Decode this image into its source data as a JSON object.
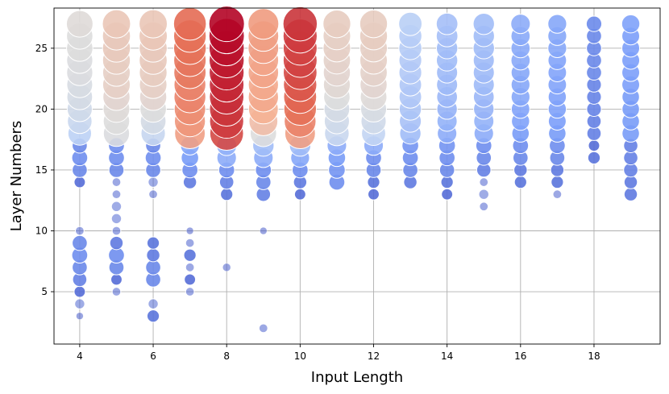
{
  "chart_data": {
    "type": "scatter",
    "title": "",
    "xlabel": "Input Length",
    "ylabel": "Layer Numbers",
    "xlim": [
      3.3,
      19.8
    ],
    "ylim": [
      0.7,
      28.3
    ],
    "xticks": [
      "4",
      "6",
      "8",
      "10",
      "12",
      "14",
      "16",
      "18"
    ],
    "yticks": [
      "5",
      "10",
      "15",
      "20",
      "25"
    ],
    "grid": true,
    "legend": "none",
    "encoding": "bubble size and color both encode magnitude (coolwarm colormap: blue = low, red = high)",
    "colors": {
      "low": "#3b4cc0",
      "mid": "#dddddd",
      "high": "#b40426"
    },
    "columns": [
      {
        "x": 4,
        "points": [
          [
            3,
            0.04
          ],
          [
            4,
            0.08
          ],
          [
            5,
            0.1
          ],
          [
            6,
            0.16
          ],
          [
            7,
            0.18
          ],
          [
            8,
            0.2
          ],
          [
            9,
            0.18
          ],
          [
            10,
            0.06
          ],
          [
            14,
            0.1
          ],
          [
            15,
            0.18
          ],
          [
            16,
            0.2
          ],
          [
            17,
            0.18
          ],
          [
            18,
            0.44
          ],
          [
            19,
            0.48
          ],
          [
            20,
            0.5
          ],
          [
            21,
            0.52
          ],
          [
            22,
            0.53
          ],
          [
            23,
            0.54
          ],
          [
            24,
            0.54
          ],
          [
            25,
            0.55
          ],
          [
            26,
            0.55
          ],
          [
            27,
            0.56
          ]
        ]
      },
      {
        "x": 5,
        "points": [
          [
            5,
            0.06
          ],
          [
            6,
            0.1
          ],
          [
            7,
            0.18
          ],
          [
            8,
            0.2
          ],
          [
            9,
            0.14
          ],
          [
            10,
            0.06
          ],
          [
            11,
            0.08
          ],
          [
            12,
            0.08
          ],
          [
            13,
            0.06
          ],
          [
            14,
            0.06
          ],
          [
            15,
            0.18
          ],
          [
            16,
            0.2
          ],
          [
            17,
            0.2
          ],
          [
            18,
            0.54
          ],
          [
            19,
            0.55
          ],
          [
            20,
            0.56
          ],
          [
            21,
            0.58
          ],
          [
            22,
            0.6
          ],
          [
            23,
            0.6
          ],
          [
            24,
            0.61
          ],
          [
            25,
            0.62
          ],
          [
            26,
            0.62
          ],
          [
            27,
            0.63
          ]
        ]
      },
      {
        "x": 6,
        "points": [
          [
            3,
            0.12
          ],
          [
            4,
            0.08
          ],
          [
            6,
            0.18
          ],
          [
            7,
            0.18
          ],
          [
            8,
            0.14
          ],
          [
            9,
            0.12
          ],
          [
            13,
            0.06
          ],
          [
            14,
            0.08
          ],
          [
            15,
            0.18
          ],
          [
            16,
            0.2
          ],
          [
            17,
            0.18
          ],
          [
            18,
            0.47
          ],
          [
            19,
            0.52
          ],
          [
            20,
            0.55
          ],
          [
            21,
            0.58
          ],
          [
            22,
            0.6
          ],
          [
            23,
            0.61
          ],
          [
            24,
            0.62
          ],
          [
            25,
            0.62
          ],
          [
            26,
            0.63
          ],
          [
            27,
            0.63
          ]
        ]
      },
      {
        "x": 7,
        "points": [
          [
            5,
            0.06
          ],
          [
            6,
            0.1
          ],
          [
            7,
            0.06
          ],
          [
            8,
            0.12
          ],
          [
            9,
            0.06
          ],
          [
            10,
            0.04
          ],
          [
            14,
            0.14
          ],
          [
            15,
            0.2
          ],
          [
            16,
            0.24
          ],
          [
            17,
            0.28
          ],
          [
            18,
            0.74
          ],
          [
            19,
            0.76
          ],
          [
            20,
            0.78
          ],
          [
            21,
            0.8
          ],
          [
            22,
            0.8
          ],
          [
            23,
            0.82
          ],
          [
            24,
            0.83
          ],
          [
            25,
            0.84
          ],
          [
            26,
            0.84
          ],
          [
            27,
            0.85
          ]
        ]
      },
      {
        "x": 8,
        "points": [
          [
            7,
            0.05
          ],
          [
            13,
            0.12
          ],
          [
            14,
            0.16
          ],
          [
            15,
            0.2
          ],
          [
            16,
            0.3
          ],
          [
            17,
            0.32
          ],
          [
            18,
            0.9
          ],
          [
            19,
            0.92
          ],
          [
            20,
            0.93
          ],
          [
            21,
            0.94
          ],
          [
            22,
            0.95
          ],
          [
            23,
            0.96
          ],
          [
            24,
            0.97
          ],
          [
            25,
            0.98
          ],
          [
            26,
            0.99
          ],
          [
            27,
            1.0
          ]
        ]
      },
      {
        "x": 9,
        "points": [
          [
            2,
            0.06
          ],
          [
            10,
            0.04
          ],
          [
            13,
            0.16
          ],
          [
            14,
            0.18
          ],
          [
            15,
            0.2
          ],
          [
            16,
            0.3
          ],
          [
            17,
            0.36
          ],
          [
            18,
            0.55
          ],
          [
            19,
            0.66
          ],
          [
            20,
            0.7
          ],
          [
            21,
            0.72
          ],
          [
            22,
            0.72
          ],
          [
            23,
            0.73
          ],
          [
            24,
            0.73
          ],
          [
            25,
            0.74
          ],
          [
            26,
            0.74
          ],
          [
            27,
            0.75
          ]
        ]
      },
      {
        "x": 10,
        "points": [
          [
            13,
            0.1
          ],
          [
            14,
            0.14
          ],
          [
            15,
            0.2
          ],
          [
            16,
            0.28
          ],
          [
            17,
            0.36
          ],
          [
            18,
            0.74
          ],
          [
            19,
            0.8
          ],
          [
            20,
            0.84
          ],
          [
            21,
            0.86
          ],
          [
            22,
            0.88
          ],
          [
            23,
            0.9
          ],
          [
            24,
            0.91
          ],
          [
            25,
            0.91
          ],
          [
            26,
            0.92
          ],
          [
            27,
            0.93
          ]
        ]
      },
      {
        "x": 11,
        "points": [
          [
            14,
            0.2
          ],
          [
            15,
            0.22
          ],
          [
            16,
            0.24
          ],
          [
            17,
            0.3
          ],
          [
            18,
            0.48
          ],
          [
            19,
            0.5
          ],
          [
            20,
            0.52
          ],
          [
            21,
            0.55
          ],
          [
            22,
            0.57
          ],
          [
            23,
            0.58
          ],
          [
            24,
            0.59
          ],
          [
            25,
            0.6
          ],
          [
            26,
            0.6
          ],
          [
            27,
            0.61
          ]
        ]
      },
      {
        "x": 12,
        "points": [
          [
            13,
            0.1
          ],
          [
            14,
            0.12
          ],
          [
            15,
            0.18
          ],
          [
            16,
            0.2
          ],
          [
            17,
            0.3
          ],
          [
            18,
            0.46
          ],
          [
            19,
            0.5
          ],
          [
            20,
            0.53
          ],
          [
            21,
            0.56
          ],
          [
            22,
            0.58
          ],
          [
            23,
            0.59
          ],
          [
            24,
            0.6
          ],
          [
            25,
            0.6
          ],
          [
            26,
            0.61
          ],
          [
            27,
            0.61
          ]
        ]
      },
      {
        "x": 13,
        "points": [
          [
            14,
            0.14
          ],
          [
            15,
            0.18
          ],
          [
            16,
            0.2
          ],
          [
            17,
            0.22
          ],
          [
            18,
            0.36
          ],
          [
            19,
            0.38
          ],
          [
            20,
            0.39
          ],
          [
            21,
            0.4
          ],
          [
            22,
            0.4
          ],
          [
            23,
            0.41
          ],
          [
            24,
            0.41
          ],
          [
            25,
            0.42
          ],
          [
            26,
            0.42
          ],
          [
            27,
            0.43
          ]
        ]
      },
      {
        "x": 14,
        "points": [
          [
            13,
            0.1
          ],
          [
            14,
            0.12
          ],
          [
            15,
            0.18
          ],
          [
            16,
            0.2
          ],
          [
            17,
            0.22
          ],
          [
            18,
            0.3
          ],
          [
            19,
            0.32
          ],
          [
            20,
            0.33
          ],
          [
            21,
            0.34
          ],
          [
            22,
            0.35
          ],
          [
            23,
            0.35
          ],
          [
            24,
            0.36
          ],
          [
            25,
            0.36
          ],
          [
            26,
            0.37
          ],
          [
            27,
            0.37
          ]
        ]
      },
      {
        "x": 15,
        "points": [
          [
            12,
            0.06
          ],
          [
            13,
            0.08
          ],
          [
            14,
            0.06
          ],
          [
            15,
            0.16
          ],
          [
            16,
            0.18
          ],
          [
            17,
            0.2
          ],
          [
            18,
            0.3
          ],
          [
            19,
            0.32
          ],
          [
            20,
            0.33
          ],
          [
            21,
            0.34
          ],
          [
            22,
            0.35
          ],
          [
            23,
            0.35
          ],
          [
            24,
            0.35
          ],
          [
            25,
            0.36
          ],
          [
            26,
            0.36
          ],
          [
            27,
            0.36
          ]
        ]
      },
      {
        "x": 16,
        "points": [
          [
            14,
            0.12
          ],
          [
            15,
            0.14
          ],
          [
            16,
            0.18
          ],
          [
            17,
            0.2
          ],
          [
            18,
            0.24
          ],
          [
            19,
            0.26
          ],
          [
            20,
            0.27
          ],
          [
            21,
            0.28
          ],
          [
            22,
            0.28
          ],
          [
            23,
            0.28
          ],
          [
            24,
            0.29
          ],
          [
            25,
            0.29
          ],
          [
            26,
            0.29
          ],
          [
            27,
            0.3
          ]
        ]
      },
      {
        "x": 17,
        "points": [
          [
            13,
            0.06
          ],
          [
            14,
            0.12
          ],
          [
            15,
            0.14
          ],
          [
            16,
            0.18
          ],
          [
            17,
            0.2
          ],
          [
            18,
            0.24
          ],
          [
            19,
            0.25
          ],
          [
            20,
            0.26
          ],
          [
            21,
            0.26
          ],
          [
            22,
            0.27
          ],
          [
            23,
            0.27
          ],
          [
            24,
            0.27
          ],
          [
            25,
            0.28
          ],
          [
            26,
            0.28
          ],
          [
            27,
            0.28
          ]
        ]
      },
      {
        "x": 18,
        "points": [
          [
            16,
            0.12
          ],
          [
            17,
            0.1
          ],
          [
            18,
            0.16
          ],
          [
            19,
            0.16
          ],
          [
            20,
            0.17
          ],
          [
            21,
            0.17
          ],
          [
            22,
            0.17
          ],
          [
            23,
            0.18
          ],
          [
            24,
            0.18
          ],
          [
            25,
            0.18
          ],
          [
            26,
            0.18
          ],
          [
            27,
            0.19
          ]
        ]
      },
      {
        "x": 19,
        "points": [
          [
            13,
            0.14
          ],
          [
            14,
            0.14
          ],
          [
            15,
            0.16
          ],
          [
            16,
            0.16
          ],
          [
            17,
            0.16
          ],
          [
            18,
            0.24
          ],
          [
            19,
            0.24
          ],
          [
            20,
            0.24
          ],
          [
            21,
            0.24
          ],
          [
            22,
            0.25
          ],
          [
            23,
            0.25
          ],
          [
            24,
            0.25
          ],
          [
            25,
            0.25
          ],
          [
            26,
            0.25
          ],
          [
            27,
            0.26
          ]
        ]
      }
    ]
  }
}
